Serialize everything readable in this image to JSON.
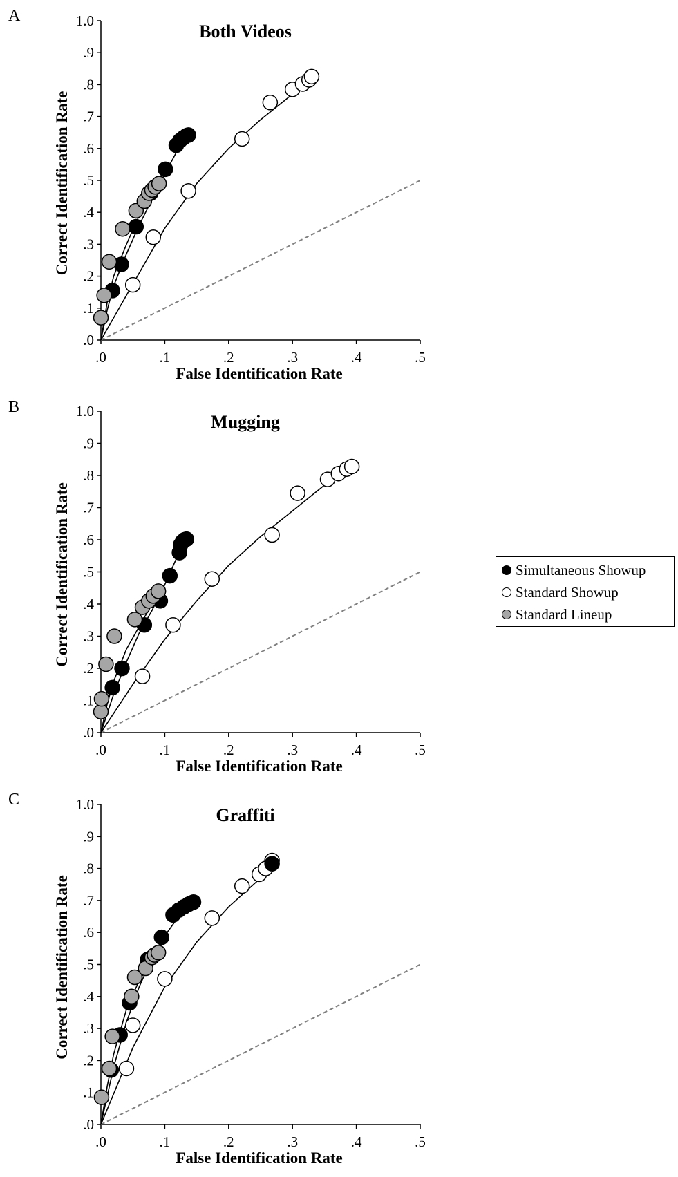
{
  "chart_data": [
    {
      "type": "scatter",
      "panel_label": "A",
      "title": "Both Videos",
      "xlabel": "False Identification Rate",
      "ylabel": "Correct Identification Rate",
      "xlim": [
        0,
        0.5
      ],
      "ylim": [
        0,
        1.0
      ],
      "xticks": [
        ".0",
        ".1",
        ".2",
        ".3",
        ".4",
        ".5"
      ],
      "yticks": [
        ".0",
        ".1",
        ".2",
        ".3",
        ".4",
        ".5",
        ".6",
        ".7",
        ".8",
        ".9",
        "1.0"
      ],
      "chance_line": [
        [
          0,
          0
        ],
        [
          0.5,
          0.5
        ]
      ],
      "series": [
        {
          "name": "Simultaneous Showup",
          "x": [
            0.018,
            0.032,
            0.055,
            0.078,
            0.085,
            0.101,
            0.118,
            0.124,
            0.129,
            0.134,
            0.137
          ],
          "y": [
            0.155,
            0.237,
            0.355,
            0.46,
            0.48,
            0.535,
            0.61,
            0.625,
            0.633,
            0.64,
            0.642
          ]
        },
        {
          "name": "Standard Showup",
          "x": [
            0.05,
            0.082,
            0.137,
            0.221,
            0.265,
            0.3,
            0.316,
            0.326,
            0.33
          ],
          "y": [
            0.173,
            0.322,
            0.467,
            0.63,
            0.744,
            0.785,
            0.802,
            0.815,
            0.825
          ]
        },
        {
          "name": "Standard Lineup",
          "x": [
            0.0,
            0.005,
            0.013,
            0.034,
            0.055,
            0.068,
            0.075,
            0.08,
            0.085,
            0.091
          ],
          "y": [
            0.07,
            0.14,
            0.245,
            0.348,
            0.405,
            0.435,
            0.46,
            0.47,
            0.48,
            0.49
          ]
        }
      ],
      "fit_curves": [
        {
          "series": "Simultaneous Showup",
          "x": [
            0,
            0.01,
            0.02,
            0.04,
            0.06,
            0.08,
            0.1,
            0.12,
            0.137
          ],
          "y": [
            0,
            0.095,
            0.17,
            0.27,
            0.36,
            0.44,
            0.52,
            0.595,
            0.643
          ]
        },
        {
          "series": "Standard Lineup",
          "x": [
            0,
            0.01,
            0.02,
            0.04,
            0.06,
            0.08,
            0.091
          ],
          "y": [
            0,
            0.12,
            0.2,
            0.3,
            0.39,
            0.46,
            0.49
          ]
        },
        {
          "series": "Standard Showup",
          "x": [
            0,
            0.05,
            0.1,
            0.15,
            0.2,
            0.25,
            0.3,
            0.33
          ],
          "y": [
            0,
            0.175,
            0.35,
            0.49,
            0.6,
            0.69,
            0.77,
            0.82
          ]
        }
      ]
    },
    {
      "type": "scatter",
      "panel_label": "B",
      "title": "Mugging",
      "xlabel": "False Identification Rate",
      "ylabel": "Correct Identification Rate",
      "xlim": [
        0,
        0.5
      ],
      "ylim": [
        0,
        1.0
      ],
      "xticks": [
        ".0",
        ".1",
        ".2",
        ".3",
        ".4",
        ".5"
      ],
      "yticks": [
        ".0",
        ".1",
        ".2",
        ".3",
        ".4",
        ".5",
        ".6",
        ".7",
        ".8",
        ".9",
        "1.0"
      ],
      "chance_line": [
        [
          0,
          0
        ],
        [
          0.5,
          0.5
        ]
      ],
      "series": [
        {
          "name": "Simultaneous Showup",
          "x": [
            0.018,
            0.033,
            0.068,
            0.093,
            0.108,
            0.123,
            0.125,
            0.128,
            0.131,
            0.134
          ],
          "y": [
            0.14,
            0.2,
            0.335,
            0.41,
            0.488,
            0.56,
            0.585,
            0.595,
            0.6,
            0.602
          ]
        },
        {
          "name": "Standard Showup",
          "x": [
            0.065,
            0.113,
            0.174,
            0.268,
            0.308,
            0.355,
            0.372,
            0.385,
            0.393
          ],
          "y": [
            0.175,
            0.335,
            0.478,
            0.615,
            0.745,
            0.788,
            0.806,
            0.82,
            0.828
          ]
        },
        {
          "name": "Standard Lineup",
          "x": [
            0.0,
            0.001,
            0.008,
            0.021,
            0.053,
            0.065,
            0.075,
            0.082,
            0.09
          ],
          "y": [
            0.065,
            0.105,
            0.213,
            0.3,
            0.352,
            0.39,
            0.41,
            0.425,
            0.44
          ]
        }
      ],
      "fit_curves": [
        {
          "series": "Simultaneous Showup",
          "x": [
            0,
            0.02,
            0.04,
            0.06,
            0.08,
            0.1,
            0.12,
            0.134
          ],
          "y": [
            0,
            0.12,
            0.22,
            0.31,
            0.38,
            0.46,
            0.55,
            0.6
          ]
        },
        {
          "series": "Standard Lineup",
          "x": [
            0,
            0.01,
            0.02,
            0.04,
            0.06,
            0.08,
            0.09
          ],
          "y": [
            0,
            0.09,
            0.16,
            0.26,
            0.33,
            0.4,
            0.44
          ]
        },
        {
          "series": "Standard Showup",
          "x": [
            0,
            0.05,
            0.1,
            0.15,
            0.2,
            0.25,
            0.3,
            0.35,
            0.393
          ],
          "y": [
            0,
            0.15,
            0.29,
            0.41,
            0.52,
            0.61,
            0.69,
            0.77,
            0.825
          ]
        }
      ]
    },
    {
      "type": "scatter",
      "panel_label": "C",
      "title": "Graffiti",
      "xlabel": "False Identification Rate",
      "ylabel": "Correct Identification Rate",
      "xlim": [
        0,
        0.5
      ],
      "ylim": [
        0,
        1.0
      ],
      "xticks": [
        ".0",
        ".1",
        ".2",
        ".3",
        ".4",
        ".5"
      ],
      "yticks": [
        ".0",
        ".1",
        ".2",
        ".3",
        ".4",
        ".5",
        ".6",
        ".7",
        ".8",
        ".9",
        "1.0"
      ],
      "chance_line": [
        [
          0,
          0
        ],
        [
          0.5,
          0.5
        ]
      ],
      "series": [
        {
          "name": "Simultaneous Showup",
          "x": [
            0.016,
            0.03,
            0.045,
            0.073,
            0.095,
            0.113,
            0.122,
            0.13,
            0.137,
            0.141,
            0.145,
            0.268
          ],
          "y": [
            0.17,
            0.28,
            0.38,
            0.515,
            0.585,
            0.655,
            0.67,
            0.68,
            0.688,
            0.692,
            0.695,
            0.815
          ]
        },
        {
          "name": "Standard Showup",
          "x": [
            0.04,
            0.05,
            0.1,
            0.174,
            0.221,
            0.248,
            0.258,
            0.268
          ],
          "y": [
            0.175,
            0.31,
            0.455,
            0.645,
            0.745,
            0.782,
            0.8,
            0.825
          ]
        },
        {
          "name": "Standard Lineup",
          "x": [
            0.001,
            0.013,
            0.018,
            0.048,
            0.053,
            0.07,
            0.08,
            0.084,
            0.09
          ],
          "y": [
            0.085,
            0.175,
            0.275,
            0.4,
            0.46,
            0.488,
            0.522,
            0.53,
            0.537
          ]
        }
      ],
      "fit_curves": [
        {
          "series": "Simultaneous Showup",
          "x": [
            0,
            0.02,
            0.04,
            0.06,
            0.08,
            0.1,
            0.12,
            0.145
          ],
          "y": [
            0,
            0.18,
            0.32,
            0.43,
            0.52,
            0.59,
            0.645,
            0.695
          ]
        },
        {
          "series": "Standard Lineup",
          "x": [
            0,
            0.01,
            0.02,
            0.04,
            0.06,
            0.08,
            0.09
          ],
          "y": [
            0,
            0.12,
            0.22,
            0.36,
            0.45,
            0.51,
            0.535
          ]
        },
        {
          "series": "Standard Showup",
          "x": [
            0,
            0.05,
            0.1,
            0.15,
            0.2,
            0.25,
            0.268
          ],
          "y": [
            0,
            0.24,
            0.43,
            0.57,
            0.68,
            0.77,
            0.81
          ]
        }
      ]
    }
  ],
  "legend": {
    "items": [
      {
        "label": "Simultaneous Showup",
        "fill": "#000000"
      },
      {
        "label": "Standard Showup",
        "fill": "#ffffff"
      },
      {
        "label": "Standard Lineup",
        "fill": "#a6a6a6"
      }
    ]
  },
  "colors": {
    "Simultaneous Showup": "#000000",
    "Standard Showup": "#ffffff",
    "Standard Lineup": "#a6a6a6",
    "marker_edge": "#000000",
    "chance_line": "#808080"
  }
}
